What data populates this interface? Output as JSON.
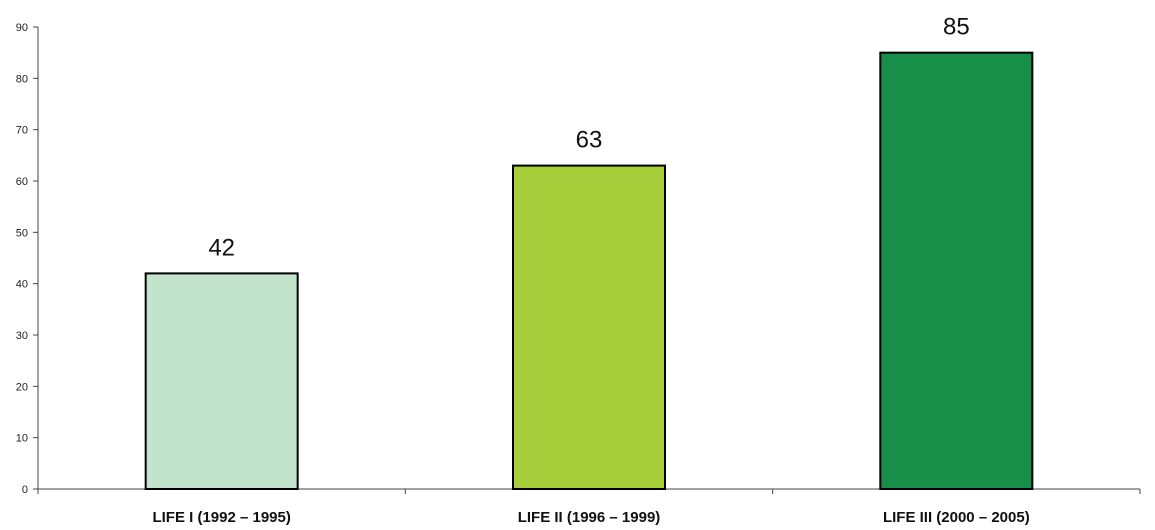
{
  "chart_data": {
    "type": "bar",
    "title": "",
    "xlabel": "",
    "ylabel": "",
    "categories": [
      "LIFE I (1992 – 1995)",
      "LIFE II (1996 – 1999)",
      "LIFE III (2000 – 2005)"
    ],
    "values": [
      42,
      63,
      85
    ],
    "data_labels": [
      "42",
      "63",
      "85"
    ],
    "bar_colors": [
      "#c2e4cc",
      "#a6cd3a",
      "#178f48"
    ],
    "ylim": [
      0,
      90
    ],
    "yticks": [
      0,
      10,
      20,
      30,
      40,
      50,
      60,
      70,
      80,
      90
    ],
    "grid": false,
    "legend": "none"
  }
}
